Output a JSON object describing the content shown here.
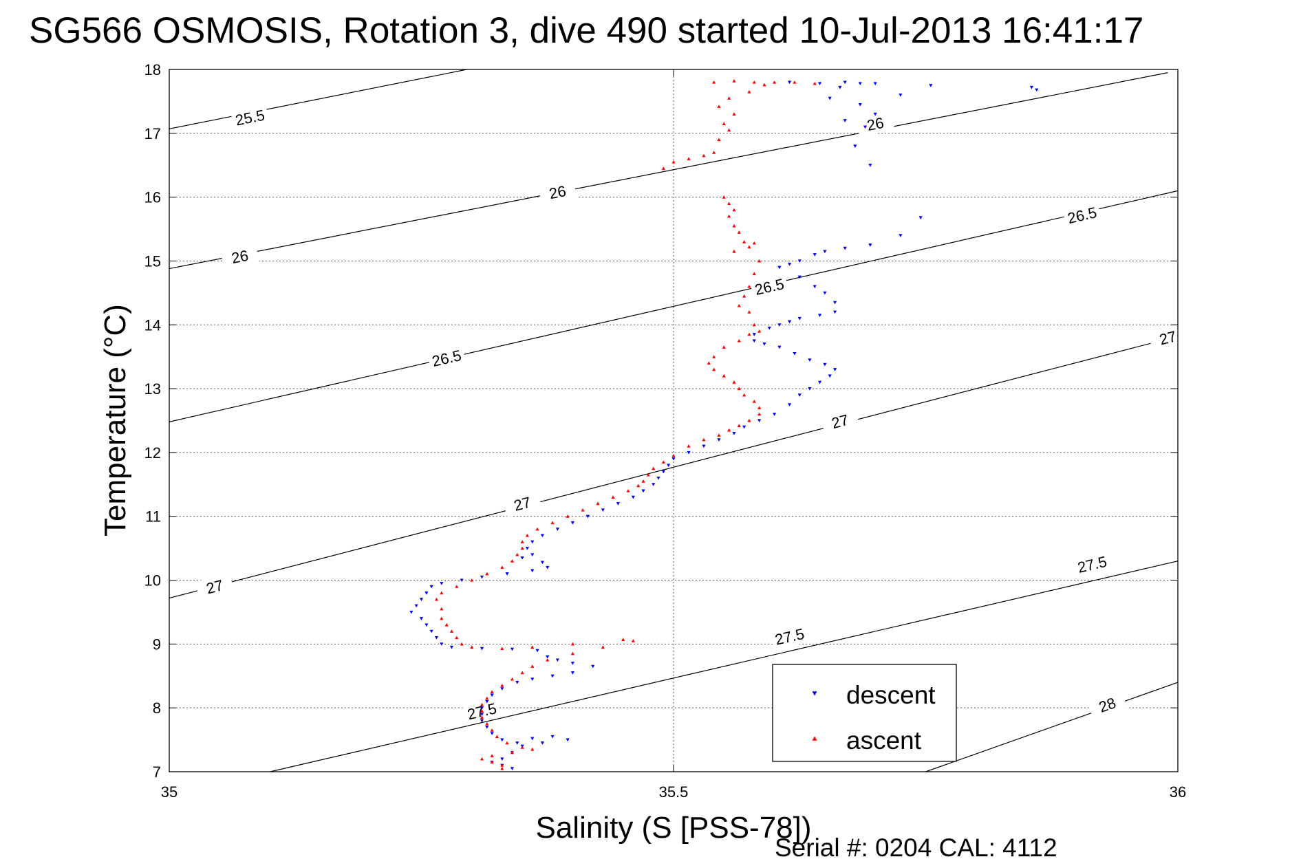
{
  "chart_data": {
    "type": "scatter",
    "title": "SG566 OSMOSIS, Rotation 3, dive 490 started 10-Jul-2013 16:41:17",
    "xlabel": "Salinity (S [PSS-78])",
    "ylabel": "Temperature (°C)",
    "xlim": [
      35,
      36
    ],
    "ylim": [
      7,
      18
    ],
    "xticks": [
      35,
      35.5,
      36
    ],
    "yticks": [
      7,
      8,
      9,
      10,
      11,
      12,
      13,
      14,
      15,
      16,
      17,
      18
    ],
    "grid": true,
    "legend_position": "bottom-right",
    "footer": "Serial #: 0204  CAL: 4112",
    "contours": [
      {
        "label": "25.5",
        "points": [
          [
            35,
            17.07
          ],
          [
            35.295,
            18.0
          ]
        ],
        "label_at": [
          35.08,
          17.25
        ]
      },
      {
        "label": "26",
        "points": [
          [
            35,
            14.88
          ],
          [
            35.99,
            17.95
          ]
        ],
        "label_at": [
          [
            35.07,
            15.07
          ],
          [
            35.385,
            16.08
          ],
          [
            35.7,
            17.15
          ]
        ]
      },
      {
        "label": "26.5",
        "points": [
          [
            35,
            12.48
          ],
          [
            36,
            16.1
          ]
        ],
        "label_at": [
          [
            35.275,
            13.48
          ],
          [
            35.595,
            14.6
          ],
          [
            35.905,
            15.72
          ]
        ]
      },
      {
        "label": "27",
        "points": [
          [
            35,
            9.72
          ],
          [
            36,
            13.82
          ]
        ],
        "label_at": [
          [
            35.045,
            9.9
          ],
          [
            35.35,
            11.2
          ],
          [
            35.665,
            12.49
          ],
          [
            35.99,
            13.8
          ]
        ]
      },
      {
        "label": "27.5",
        "points": [
          [
            35.1,
            7.0
          ],
          [
            36,
            10.3
          ]
        ],
        "label_at": [
          [
            35.31,
            7.95
          ],
          [
            35.615,
            9.12
          ],
          [
            35.915,
            10.25
          ]
        ]
      },
      {
        "label": "28",
        "points": [
          [
            35.75,
            7.0
          ],
          [
            36,
            8.4
          ]
        ],
        "label_at": [
          [
            35.93,
            8.05
          ]
        ]
      }
    ],
    "series": [
      {
        "name": "descent",
        "color": "#0000ff",
        "marker": "triangle-down",
        "points": [
          [
            35.615,
            17.8
          ],
          [
            35.645,
            17.78
          ],
          [
            35.67,
            17.8
          ],
          [
            35.685,
            17.78
          ],
          [
            35.7,
            17.78
          ],
          [
            35.665,
            17.72
          ],
          [
            35.655,
            17.55
          ],
          [
            35.685,
            17.45
          ],
          [
            35.7,
            17.3
          ],
          [
            35.67,
            17.2
          ],
          [
            35.69,
            17.1
          ],
          [
            35.725,
            17.6
          ],
          [
            35.755,
            17.75
          ],
          [
            35.855,
            17.72
          ],
          [
            35.86,
            17.68
          ],
          [
            35.68,
            16.8
          ],
          [
            35.695,
            16.5
          ],
          [
            35.745,
            15.68
          ],
          [
            35.725,
            15.4
          ],
          [
            35.695,
            15.25
          ],
          [
            35.67,
            15.2
          ],
          [
            35.65,
            15.15
          ],
          [
            35.64,
            15.1
          ],
          [
            35.625,
            15.0
          ],
          [
            35.615,
            14.95
          ],
          [
            35.605,
            14.9
          ],
          [
            35.625,
            14.75
          ],
          [
            35.64,
            14.6
          ],
          [
            35.65,
            14.5
          ],
          [
            35.66,
            14.35
          ],
          [
            35.66,
            14.2
          ],
          [
            35.645,
            14.15
          ],
          [
            35.625,
            14.1
          ],
          [
            35.615,
            14.05
          ],
          [
            35.605,
            14.0
          ],
          [
            35.595,
            13.95
          ],
          [
            35.58,
            13.85
          ],
          [
            35.58,
            13.75
          ],
          [
            35.59,
            13.7
          ],
          [
            35.605,
            13.65
          ],
          [
            35.62,
            13.55
          ],
          [
            35.635,
            13.45
          ],
          [
            35.65,
            13.38
          ],
          [
            35.66,
            13.3
          ],
          [
            35.655,
            13.2
          ],
          [
            35.645,
            13.1
          ],
          [
            35.635,
            13.0
          ],
          [
            35.625,
            12.9
          ],
          [
            35.615,
            12.75
          ],
          [
            35.6,
            12.6
          ],
          [
            35.585,
            12.5
          ],
          [
            35.57,
            12.4
          ],
          [
            35.56,
            12.3
          ],
          [
            35.545,
            12.2
          ],
          [
            35.53,
            12.1
          ],
          [
            35.515,
            12.0
          ],
          [
            35.5,
            11.9
          ],
          [
            35.495,
            11.8
          ],
          [
            35.49,
            11.7
          ],
          [
            35.485,
            11.6
          ],
          [
            35.48,
            11.5
          ],
          [
            35.47,
            11.4
          ],
          [
            35.46,
            11.3
          ],
          [
            35.445,
            11.2
          ],
          [
            35.43,
            11.1
          ],
          [
            35.415,
            11.0
          ],
          [
            35.4,
            10.9
          ],
          [
            35.385,
            10.8
          ],
          [
            35.37,
            10.7
          ],
          [
            35.36,
            10.6
          ],
          [
            35.355,
            10.5
          ],
          [
            35.36,
            10.4
          ],
          [
            35.35,
            10.35
          ],
          [
            35.37,
            10.28
          ],
          [
            35.375,
            10.2
          ],
          [
            35.36,
            10.15
          ],
          [
            35.335,
            10.1
          ],
          [
            35.31,
            10.05
          ],
          [
            35.29,
            10.0
          ],
          [
            35.27,
            9.95
          ],
          [
            35.26,
            9.9
          ],
          [
            35.255,
            9.8
          ],
          [
            35.25,
            9.7
          ],
          [
            35.245,
            9.6
          ],
          [
            35.24,
            9.5
          ],
          [
            35.25,
            9.4
          ],
          [
            35.255,
            9.3
          ],
          [
            35.26,
            9.2
          ],
          [
            35.265,
            9.1
          ],
          [
            35.27,
            9.0
          ],
          [
            35.28,
            8.95
          ],
          [
            35.31,
            8.93
          ],
          [
            35.34,
            8.92
          ],
          [
            35.365,
            8.9
          ],
          [
            35.375,
            8.8
          ],
          [
            35.385,
            8.75
          ],
          [
            35.4,
            8.7
          ],
          [
            35.42,
            8.65
          ],
          [
            35.4,
            8.55
          ],
          [
            35.38,
            8.5
          ],
          [
            35.36,
            8.45
          ],
          [
            35.345,
            8.4
          ],
          [
            35.33,
            8.3
          ],
          [
            35.32,
            8.2
          ],
          [
            35.315,
            8.1
          ],
          [
            35.31,
            8.0
          ],
          [
            35.31,
            7.9
          ],
          [
            35.31,
            7.8
          ],
          [
            35.315,
            7.7
          ],
          [
            35.32,
            7.6
          ],
          [
            35.33,
            7.5
          ],
          [
            35.345,
            7.45
          ],
          [
            35.36,
            7.52
          ],
          [
            35.38,
            7.55
          ],
          [
            35.395,
            7.5
          ],
          [
            35.37,
            7.45
          ],
          [
            35.35,
            7.4
          ],
          [
            35.34,
            7.3
          ],
          [
            35.33,
            7.2
          ],
          [
            35.32,
            7.15
          ],
          [
            35.33,
            7.1
          ],
          [
            35.34,
            7.05
          ]
        ]
      },
      {
        "name": "ascent",
        "color": "#ff0000",
        "marker": "triangle-up",
        "points": [
          [
            35.54,
            17.8
          ],
          [
            35.56,
            17.82
          ],
          [
            35.58,
            17.8
          ],
          [
            35.6,
            17.8
          ],
          [
            35.62,
            17.8
          ],
          [
            35.64,
            17.78
          ],
          [
            35.59,
            17.76
          ],
          [
            35.575,
            17.65
          ],
          [
            35.555,
            17.55
          ],
          [
            35.545,
            17.42
          ],
          [
            35.56,
            17.3
          ],
          [
            35.55,
            17.15
          ],
          [
            35.555,
            17.05
          ],
          [
            35.545,
            16.9
          ],
          [
            35.54,
            16.7
          ],
          [
            35.53,
            16.65
          ],
          [
            35.515,
            16.6
          ],
          [
            35.5,
            16.55
          ],
          [
            35.49,
            16.45
          ],
          [
            35.55,
            16.0
          ],
          [
            35.555,
            15.9
          ],
          [
            35.56,
            15.8
          ],
          [
            35.555,
            15.7
          ],
          [
            35.56,
            15.55
          ],
          [
            35.565,
            15.45
          ],
          [
            35.57,
            15.3
          ],
          [
            35.575,
            15.22
          ],
          [
            35.58,
            15.28
          ],
          [
            35.56,
            15.15
          ],
          [
            35.585,
            15.0
          ],
          [
            35.58,
            14.8
          ],
          [
            35.575,
            14.6
          ],
          [
            35.57,
            14.45
          ],
          [
            35.565,
            14.3
          ],
          [
            35.575,
            14.2
          ],
          [
            35.58,
            14.0
          ],
          [
            35.585,
            13.9
          ],
          [
            35.575,
            13.85
          ],
          [
            35.565,
            13.75
          ],
          [
            35.55,
            13.65
          ],
          [
            35.54,
            13.5
          ],
          [
            35.535,
            13.4
          ],
          [
            35.54,
            13.3
          ],
          [
            35.55,
            13.2
          ],
          [
            35.56,
            13.1
          ],
          [
            35.565,
            13.0
          ],
          [
            35.57,
            12.9
          ],
          [
            35.58,
            12.8
          ],
          [
            35.585,
            12.7
          ],
          [
            35.585,
            12.6
          ],
          [
            35.575,
            12.5
          ],
          [
            35.565,
            12.42
          ],
          [
            35.555,
            12.35
          ],
          [
            35.545,
            12.27
          ],
          [
            35.53,
            12.2
          ],
          [
            35.515,
            12.1
          ],
          [
            35.5,
            11.95
          ],
          [
            35.49,
            11.85
          ],
          [
            35.48,
            11.75
          ],
          [
            35.475,
            11.65
          ],
          [
            35.47,
            11.55
          ],
          [
            35.465,
            11.48
          ],
          [
            35.455,
            11.4
          ],
          [
            35.44,
            11.3
          ],
          [
            35.425,
            11.2
          ],
          [
            35.41,
            11.1
          ],
          [
            35.395,
            11.0
          ],
          [
            35.38,
            10.9
          ],
          [
            35.365,
            10.8
          ],
          [
            35.355,
            10.7
          ],
          [
            35.35,
            10.6
          ],
          [
            35.35,
            10.5
          ],
          [
            35.345,
            10.4
          ],
          [
            35.34,
            10.3
          ],
          [
            35.33,
            10.2
          ],
          [
            35.315,
            10.1
          ],
          [
            35.3,
            10.0
          ],
          [
            35.285,
            9.9
          ],
          [
            35.27,
            9.8
          ],
          [
            35.265,
            9.7
          ],
          [
            35.27,
            9.55
          ],
          [
            35.27,
            9.4
          ],
          [
            35.275,
            9.3
          ],
          [
            35.28,
            9.2
          ],
          [
            35.285,
            9.1
          ],
          [
            35.29,
            9.0
          ],
          [
            35.3,
            8.95
          ],
          [
            35.33,
            8.93
          ],
          [
            35.36,
            8.95
          ],
          [
            35.4,
            9.0
          ],
          [
            35.45,
            9.07
          ],
          [
            35.46,
            9.05
          ],
          [
            35.43,
            8.95
          ],
          [
            35.4,
            8.85
          ],
          [
            35.375,
            8.75
          ],
          [
            35.36,
            8.65
          ],
          [
            35.35,
            8.55
          ],
          [
            35.34,
            8.45
          ],
          [
            35.33,
            8.35
          ],
          [
            35.32,
            8.25
          ],
          [
            35.315,
            8.15
          ],
          [
            35.31,
            8.05
          ],
          [
            35.31,
            7.95
          ],
          [
            35.31,
            7.85
          ],
          [
            35.315,
            7.75
          ],
          [
            35.32,
            7.65
          ],
          [
            35.325,
            7.55
          ],
          [
            35.335,
            7.45
          ],
          [
            35.35,
            7.38
          ],
          [
            35.36,
            7.35
          ],
          [
            35.34,
            7.3
          ],
          [
            35.32,
            7.25
          ],
          [
            35.31,
            7.2
          ],
          [
            35.32,
            7.15
          ],
          [
            35.33,
            7.1
          ],
          [
            35.33,
            7.05
          ]
        ]
      }
    ]
  }
}
